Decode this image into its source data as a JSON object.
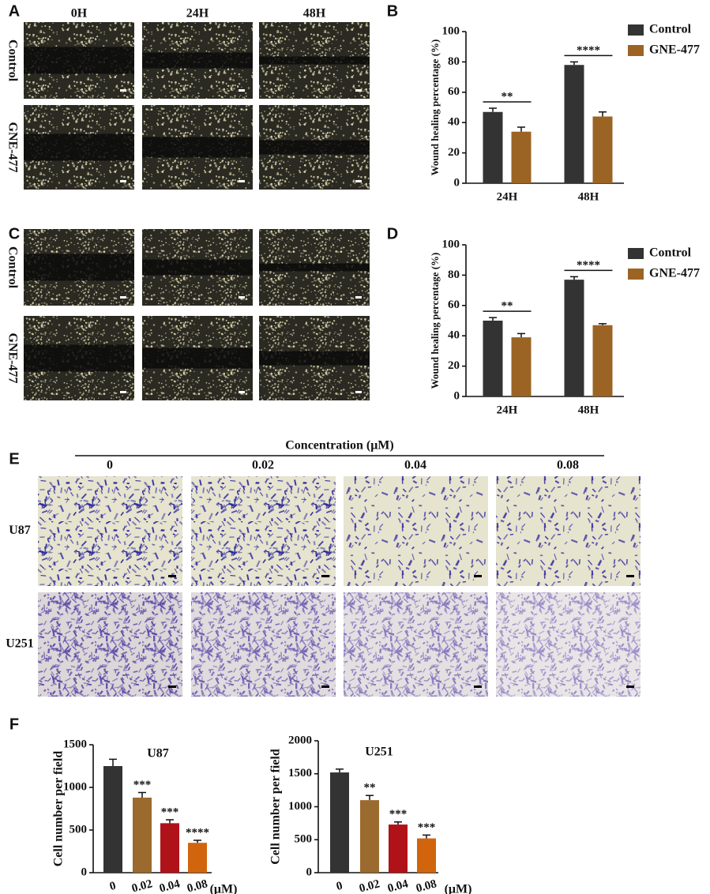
{
  "panel_labels": [
    "A",
    "B",
    "C",
    "D",
    "E",
    "F"
  ],
  "wound_assay": [
    {
      "columns": [
        "0H",
        "24H",
        "48H"
      ],
      "rows": [
        "Control",
        "GNE-477"
      ]
    },
    {
      "columns": [
        "0H",
        "24H",
        "48H"
      ],
      "rows": [
        "Control",
        "GNE-477"
      ]
    }
  ],
  "transwell": {
    "header": "Concentration (μM)",
    "columns": [
      "0",
      "0.02",
      "0.04",
      "0.08"
    ],
    "rows": [
      "U87",
      "U251"
    ]
  },
  "chart_data": [
    {
      "type": "bar",
      "ylabel": "Wound healing percentage (%)",
      "categories": [
        "24H",
        "48H"
      ],
      "series": [
        {
          "name": "Control",
          "color": "#333333",
          "values": [
            47,
            78
          ],
          "errors": [
            2.5,
            2
          ]
        },
        {
          "name": "GNE-477",
          "color": "#9b6424",
          "values": [
            34,
            44
          ],
          "errors": [
            3,
            3
          ]
        }
      ],
      "annotations": [
        "**",
        "****"
      ],
      "ylim": [
        0,
        100
      ],
      "yticks": [
        0,
        20,
        40,
        60,
        80,
        100
      ],
      "legend": "right"
    },
    {
      "type": "bar",
      "ylabel": "Wound healing percentage (%)",
      "categories": [
        "24H",
        "48H"
      ],
      "series": [
        {
          "name": "Control",
          "color": "#333333",
          "values": [
            50,
            77
          ],
          "errors": [
            2,
            2
          ]
        },
        {
          "name": "GNE-477",
          "color": "#9b6424",
          "values": [
            39,
            47
          ],
          "errors": [
            2.5,
            1
          ]
        }
      ],
      "annotations": [
        "**",
        "****"
      ],
      "ylim": [
        0,
        100
      ],
      "yticks": [
        0,
        20,
        40,
        60,
        80,
        100
      ],
      "legend": "right"
    },
    {
      "type": "bar",
      "title": "U87",
      "ylabel": "Cell number per field",
      "xlabel": "(μM)",
      "categories": [
        "0",
        "0.02",
        "0.04",
        "0.08"
      ],
      "values": [
        1250,
        880,
        580,
        350
      ],
      "errors": [
        80,
        60,
        40,
        30
      ],
      "colors": [
        "#333333",
        "#9b6a2e",
        "#b0121a",
        "#d0650e"
      ],
      "annotations": [
        null,
        "***",
        "***",
        "****"
      ],
      "ylim": [
        0,
        1500
      ],
      "yticks": [
        0,
        500,
        1000,
        1500
      ]
    },
    {
      "type": "bar",
      "title": "U251",
      "ylabel": "Cell number per field",
      "xlabel": "(μM)",
      "categories": [
        "0",
        "0.02",
        "0.04",
        "0.08"
      ],
      "values": [
        1520,
        1100,
        730,
        520
      ],
      "errors": [
        50,
        70,
        40,
        50
      ],
      "colors": [
        "#333333",
        "#9b6a2e",
        "#b0121a",
        "#d0650e"
      ],
      "annotations": [
        null,
        "**",
        "***",
        "***"
      ],
      "ylim": [
        0,
        2000
      ],
      "yticks": [
        0,
        500,
        1000,
        1500,
        2000
      ]
    }
  ]
}
